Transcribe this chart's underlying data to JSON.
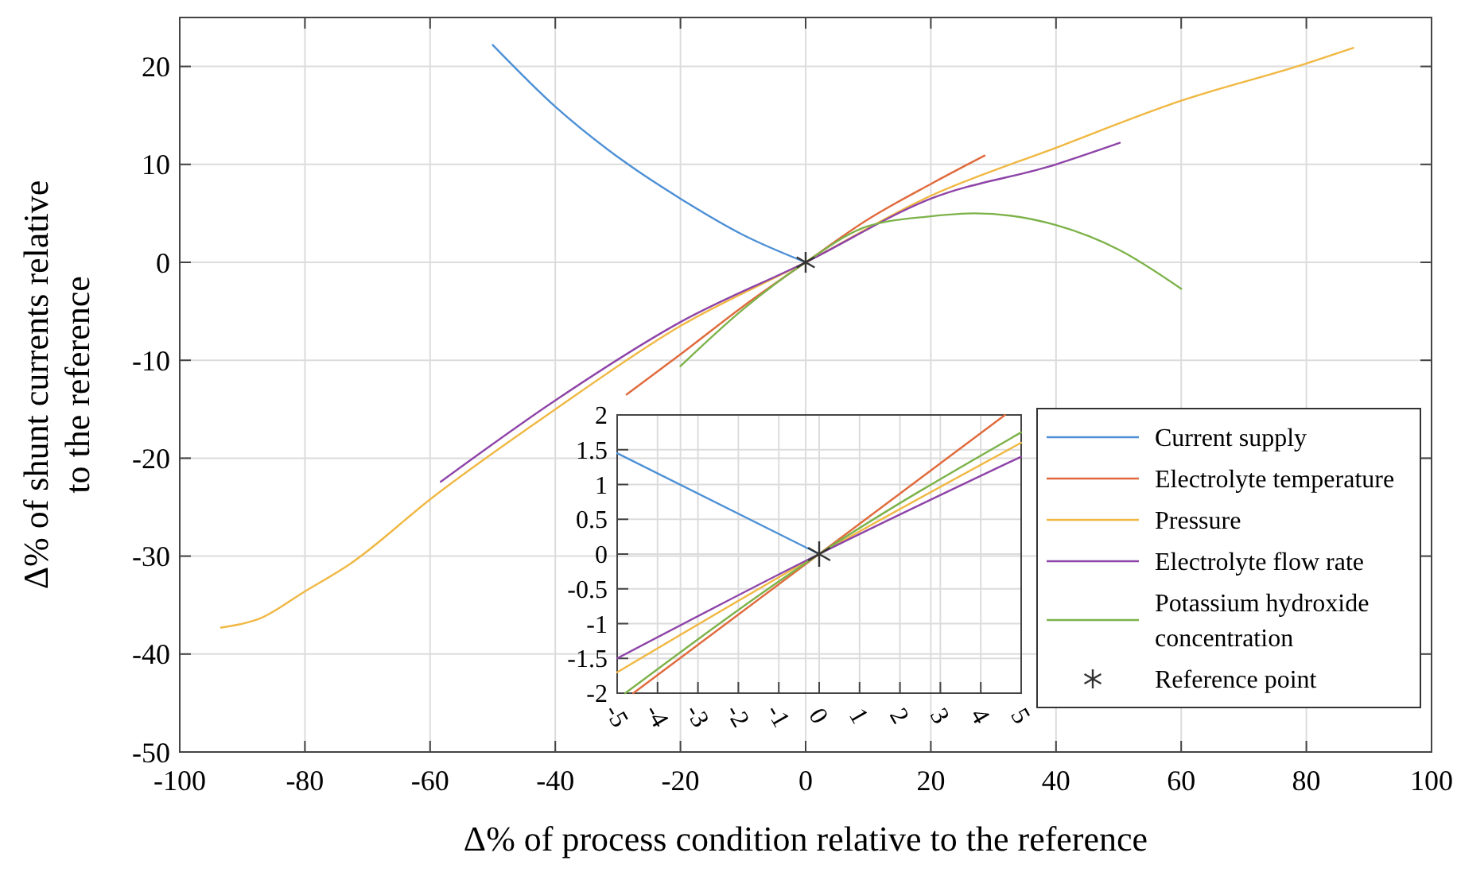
{
  "chart_data": [
    {
      "type": "line",
      "xlabel": "Δ% of process condition relative to the reference",
      "ylabel": "Δ% of shunt currents relative to the reference",
      "xlim": [
        -100,
        100
      ],
      "xticks": [
        -100,
        -80,
        -60,
        -40,
        -20,
        0,
        20,
        40,
        60,
        80,
        100
      ],
      "ylim": [
        -50,
        25
      ],
      "yticks": [
        -50,
        -40,
        -30,
        -20,
        -10,
        0,
        10,
        20
      ],
      "grid": true,
      "legend": "bottom right",
      "series": [
        {
          "name": "Current supply",
          "color": "#4d90d6",
          "x": [
            -50,
            -40,
            -28.8,
            -20,
            -10,
            0
          ],
          "values": [
            22.2,
            15.9,
            10.2,
            6.5,
            2.8,
            0
          ]
        },
        {
          "name": "Electrolyte temperature",
          "color": "#e06a3c",
          "x": [
            -28.6,
            -20,
            -10,
            0,
            10,
            20,
            28.6
          ],
          "values": [
            -13.5,
            -9.4,
            -4.5,
            0,
            4.4,
            8,
            10.9
          ]
        },
        {
          "name": "Pressure",
          "color": "#f0b843",
          "x": [
            -93.4,
            -87.3,
            -80,
            -72.8,
            -59.6,
            -40.2,
            -20,
            0,
            20,
            40,
            60,
            80,
            87.5
          ],
          "values": [
            -37.3,
            -36.4,
            -33.6,
            -30.8,
            -24,
            -15.1,
            -6.5,
            0,
            6.8,
            11.7,
            16.5,
            20.3,
            21.9
          ]
        },
        {
          "name": "Electrolyte flow rate",
          "color": "#8e44a8",
          "x": [
            -58.3,
            -40,
            -20,
            0,
            20,
            40,
            50.2
          ],
          "values": [
            -22.4,
            -14.1,
            -6.1,
            0,
            6.5,
            10,
            12.2
          ]
        },
        {
          "name": "Potassium hydroxide concentration",
          "color": "#7db24a",
          "x": [
            -20,
            -10,
            0,
            10,
            20,
            27,
            40,
            50,
            60
          ],
          "values": [
            -10.6,
            -4.8,
            0,
            3.7,
            4.7,
            5,
            3.8,
            1.3,
            -2.7
          ]
        },
        {
          "name": "Reference point",
          "type": "scatter",
          "marker": "cross",
          "color": "#333333",
          "x": [
            0
          ],
          "values": [
            0
          ]
        }
      ]
    },
    {
      "type": "line",
      "xlim": [
        -5,
        5
      ],
      "xticks": [
        -5,
        -4,
        -3,
        -2,
        -1,
        0,
        1,
        2,
        3,
        4,
        5
      ],
      "ylim": [
        -2,
        2
      ],
      "yticks": [
        -2,
        -1.5,
        -1,
        -0.5,
        0,
        0.5,
        1,
        1.5,
        2
      ],
      "grid": true,
      "series": [
        {
          "color": "#4d90d6",
          "x": [
            -5,
            0
          ],
          "values": [
            1.45,
            0
          ]
        },
        {
          "color": "#e06a3c",
          "x": [
            -4.6,
            0,
            4.6
          ],
          "values": [
            -2,
            0,
            2
          ]
        },
        {
          "color": "#f0b843",
          "x": [
            -5,
            0,
            5
          ],
          "values": [
            -1.7,
            0,
            1.6
          ]
        },
        {
          "color": "#8e44a8",
          "x": [
            -5,
            0,
            5
          ],
          "values": [
            -1.5,
            0,
            1.4
          ]
        },
        {
          "color": "#7db24a",
          "x": [
            -4.8,
            0,
            5
          ],
          "values": [
            -2,
            0,
            1.75
          ]
        },
        {
          "type": "scatter",
          "marker": "cross",
          "color": "#333333",
          "x": [
            0
          ],
          "values": [
            0
          ]
        }
      ]
    }
  ]
}
